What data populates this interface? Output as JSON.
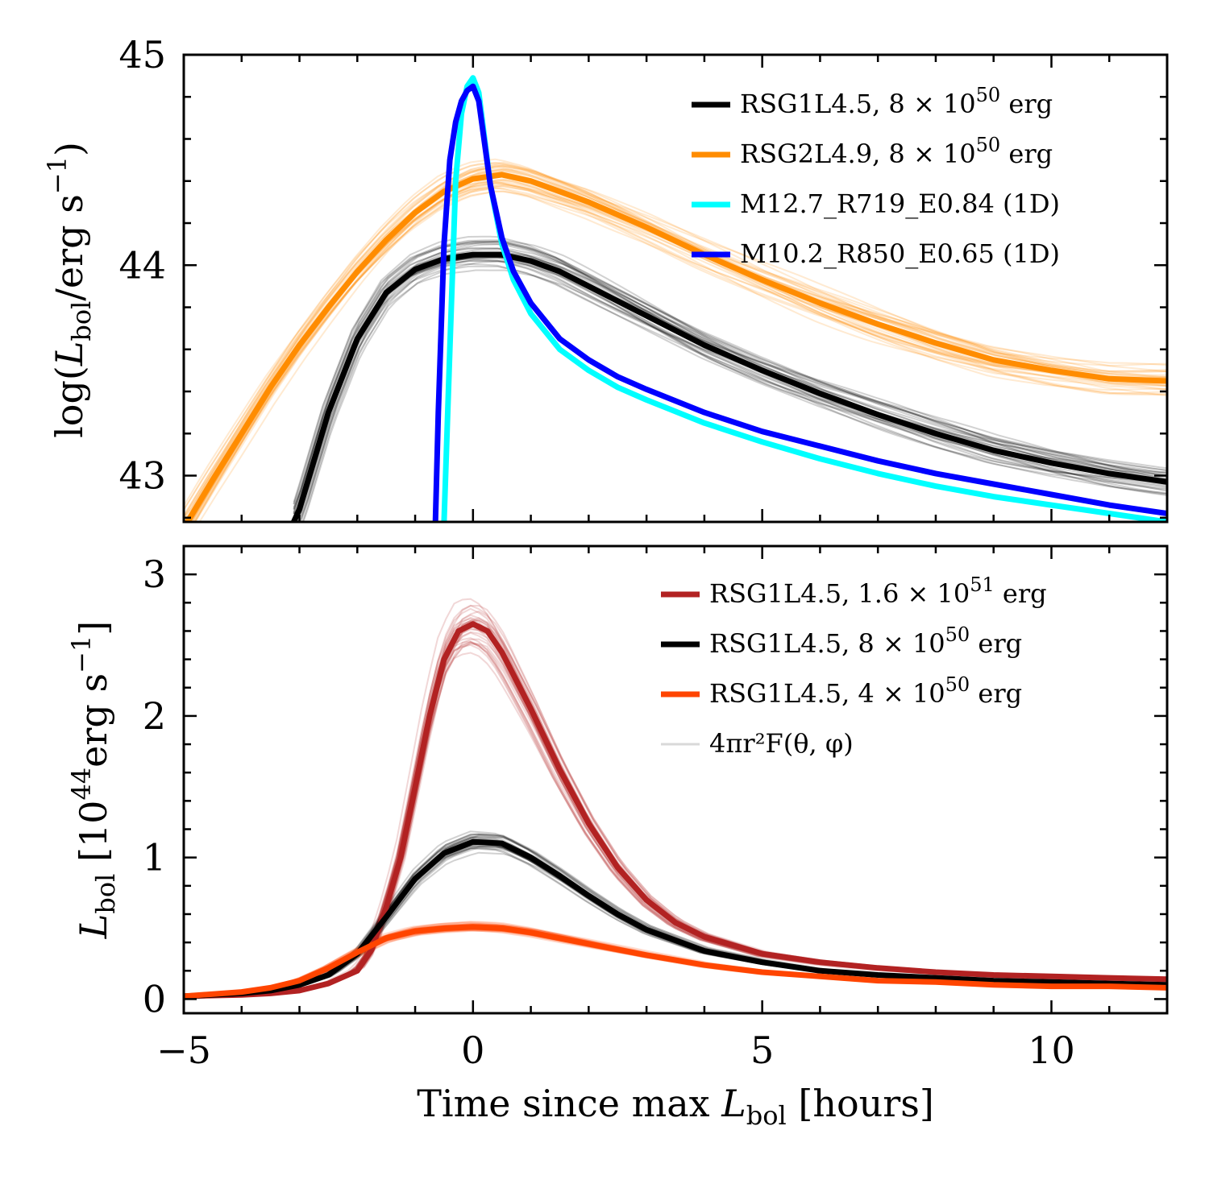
{
  "chart_data": [
    {
      "id": "top",
      "type": "line",
      "ylabel": "log(L_bol/erg s^-1)",
      "xlim": [
        -5,
        12
      ],
      "ylim": [
        42.78,
        45.0
      ],
      "xticks": [
        -5,
        0,
        5,
        10
      ],
      "yticks": [
        43,
        44,
        45
      ],
      "ytick_labels": [
        "43",
        "44",
        "45"
      ],
      "legend_position": "top-right",
      "legend": [
        {
          "label": "RSG1L4.5, 8 × 10^50 erg",
          "color": "#000000"
        },
        {
          "label": "RSG2L4.9, 8 × 10^50 erg",
          "color": "#ff8c00"
        },
        {
          "label": "M12.7_R719_E0.84 (1D)",
          "color": "#00ffff"
        },
        {
          "label": "M10.2_R850_E0.65 (1D)",
          "color": "#0000ff"
        }
      ],
      "series": [
        {
          "name": "RSG2L4.9, 8 × 10^50 erg",
          "color": "#ff8c00",
          "x": [
            -5,
            -4.5,
            -4,
            -3.5,
            -3,
            -2.5,
            -2,
            -1.5,
            -1,
            -0.5,
            0,
            0.5,
            1,
            1.5,
            2,
            3,
            4,
            5,
            6,
            7,
            8,
            9,
            10,
            11,
            12
          ],
          "y": [
            42.75,
            42.98,
            43.2,
            43.42,
            43.62,
            43.8,
            43.97,
            44.12,
            44.25,
            44.35,
            44.41,
            44.43,
            44.4,
            44.35,
            44.3,
            44.18,
            44.05,
            43.93,
            43.82,
            43.72,
            43.63,
            43.55,
            43.5,
            43.46,
            43.45
          ]
        },
        {
          "name": "RSG1L4.5, 8 × 10^50 erg",
          "color": "#000000",
          "x": [
            -3.1,
            -3,
            -2.5,
            -2,
            -1.5,
            -1,
            -0.5,
            0,
            0.5,
            1,
            1.5,
            2,
            3,
            4,
            5,
            6,
            7,
            8,
            9,
            10,
            11,
            12
          ],
          "y": [
            42.78,
            42.84,
            43.3,
            43.65,
            43.87,
            43.98,
            44.03,
            44.05,
            44.05,
            44.02,
            43.97,
            43.9,
            43.76,
            43.62,
            43.5,
            43.39,
            43.29,
            43.2,
            43.12,
            43.06,
            43.01,
            42.97
          ]
        },
        {
          "name": "M12.7_R719_E0.84 (1D)",
          "color": "#00ffff",
          "x": [
            -0.5,
            -0.4,
            -0.3,
            -0.2,
            -0.1,
            0,
            0.1,
            0.2,
            0.3,
            0.5,
            0.7,
            1,
            1.5,
            2,
            2.5,
            3,
            4,
            5,
            6,
            7,
            8,
            9,
            10,
            11,
            12
          ],
          "y": [
            42.78,
            43.6,
            44.4,
            44.72,
            44.85,
            44.89,
            44.82,
            44.6,
            44.38,
            44.1,
            43.93,
            43.77,
            43.6,
            43.5,
            43.42,
            43.36,
            43.25,
            43.16,
            43.08,
            43.01,
            42.95,
            42.9,
            42.86,
            42.82,
            42.78
          ]
        },
        {
          "name": "M10.2_R850_E0.65 (1D)",
          "color": "#0000ff",
          "x": [
            -0.65,
            -0.6,
            -0.5,
            -0.4,
            -0.3,
            -0.2,
            -0.1,
            0,
            0.1,
            0.2,
            0.3,
            0.5,
            0.7,
            1,
            1.5,
            2,
            2.5,
            3,
            4,
            5,
            6,
            7,
            8,
            9,
            10,
            11,
            12
          ],
          "y": [
            42.78,
            43.3,
            44.1,
            44.5,
            44.68,
            44.78,
            44.83,
            44.85,
            44.78,
            44.58,
            44.38,
            44.13,
            43.97,
            43.82,
            43.65,
            43.55,
            43.47,
            43.41,
            43.3,
            43.21,
            43.14,
            43.07,
            43.01,
            42.96,
            42.91,
            42.86,
            42.82
          ]
        }
      ]
    },
    {
      "id": "bottom",
      "type": "line",
      "xlabel": "Time since max L_bol [hours]",
      "ylabel": "L_bol [10^44 erg s^-1]",
      "xlim": [
        -5,
        12
      ],
      "ylim": [
        -0.1,
        3.2
      ],
      "xticks": [
        -5,
        0,
        5,
        10
      ],
      "xtick_labels": [
        "−5",
        "0",
        "5",
        "10"
      ],
      "yticks": [
        0,
        1,
        2,
        3
      ],
      "ytick_labels": [
        "0",
        "1",
        "2",
        "3"
      ],
      "legend_position": "top-right",
      "legend": [
        {
          "label": "RSG1L4.5, 1.6 × 10^51 erg",
          "color": "#b22222"
        },
        {
          "label": "RSG1L4.5, 8 × 10^50 erg",
          "color": "#000000"
        },
        {
          "label": "RSG1L4.5, 4 × 10^50 erg",
          "color": "#ff4500"
        },
        {
          "label": "4πr²F(θ, φ)",
          "color": "#d9d9d9"
        }
      ],
      "series": [
        {
          "name": "RSG1L4.5, 1.6 × 10^51 erg",
          "color": "#b22222",
          "x": [
            -5,
            -4,
            -3.5,
            -3,
            -2.5,
            -2,
            -1.75,
            -1.5,
            -1.25,
            -1,
            -0.75,
            -0.5,
            -0.25,
            0,
            0.25,
            0.5,
            1,
            1.5,
            2,
            2.5,
            3,
            3.5,
            4,
            5,
            6,
            7,
            8,
            9,
            10,
            11,
            12
          ],
          "y": [
            0.02,
            0.03,
            0.04,
            0.06,
            0.11,
            0.2,
            0.35,
            0.65,
            1.0,
            1.5,
            2.0,
            2.4,
            2.6,
            2.65,
            2.6,
            2.45,
            2.05,
            1.62,
            1.24,
            0.93,
            0.7,
            0.54,
            0.44,
            0.32,
            0.26,
            0.22,
            0.19,
            0.17,
            0.16,
            0.15,
            0.14
          ]
        },
        {
          "name": "RSG1L4.5, 8 × 10^50 erg",
          "color": "#000000",
          "x": [
            -5,
            -4,
            -3.5,
            -3,
            -2.5,
            -2,
            -1.5,
            -1,
            -0.5,
            0,
            0.5,
            1,
            1.5,
            2,
            2.5,
            3,
            4,
            5,
            6,
            7,
            8,
            9,
            10,
            11,
            12
          ],
          "y": [
            0.02,
            0.04,
            0.06,
            0.1,
            0.17,
            0.32,
            0.58,
            0.85,
            1.03,
            1.11,
            1.1,
            1.0,
            0.87,
            0.73,
            0.6,
            0.49,
            0.34,
            0.26,
            0.2,
            0.17,
            0.15,
            0.13,
            0.12,
            0.11,
            0.1
          ]
        },
        {
          "name": "RSG1L4.5, 4 × 10^50 erg",
          "color": "#ff4500",
          "x": [
            -5,
            -4,
            -3.5,
            -3,
            -2.5,
            -2,
            -1.5,
            -1,
            -0.5,
            0,
            0.5,
            1,
            2,
            3,
            4,
            5,
            6,
            7,
            8,
            9,
            10,
            11,
            12
          ],
          "y": [
            0.02,
            0.05,
            0.08,
            0.13,
            0.22,
            0.33,
            0.43,
            0.48,
            0.5,
            0.51,
            0.5,
            0.47,
            0.39,
            0.31,
            0.24,
            0.19,
            0.16,
            0.13,
            0.12,
            0.1,
            0.09,
            0.09,
            0.08
          ]
        }
      ]
    }
  ]
}
